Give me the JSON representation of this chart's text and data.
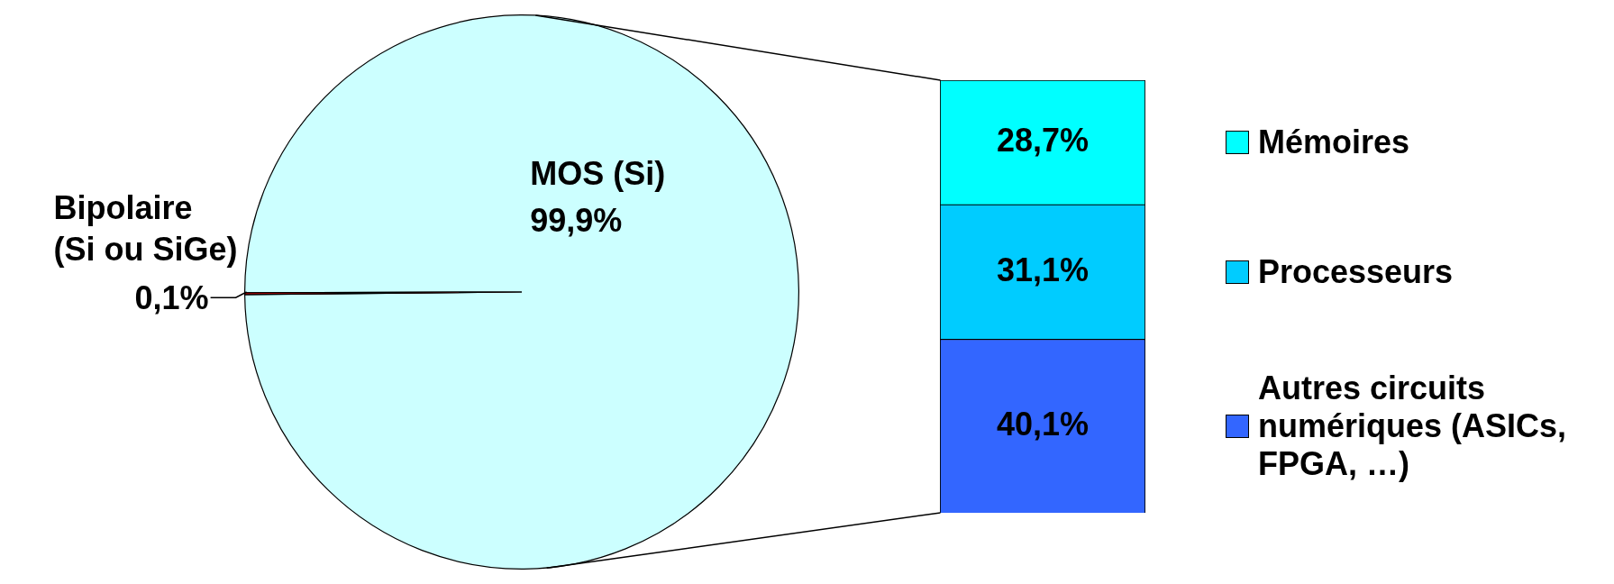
{
  "chart_data": [
    {
      "type": "pie",
      "categories": [
        "MOS (Si)",
        "Bipolaire (Si ou SiGe)"
      ],
      "values": [
        99.9,
        0.1
      ],
      "colors": [
        "#ccffff",
        "#ff0000"
      ],
      "value_labels": [
        "99,9%",
        "0,1%"
      ]
    },
    {
      "type": "bar",
      "stacked": true,
      "categories": [
        null
      ],
      "tick_labels": false,
      "legend": "right",
      "series": [
        {
          "name": "Autres circuits numériques (ASICs, FPGA, …)",
          "color": "#3366ff",
          "values": [
            40.1
          ],
          "value_labels": [
            "40,1%"
          ]
        },
        {
          "name": "Processeurs",
          "color": "#00ccff",
          "values": [
            31.1
          ],
          "value_labels": [
            "31,1%"
          ]
        },
        {
          "name": "Mémoires",
          "color": "#00ffff",
          "values": [
            28.7
          ],
          "value_labels": [
            "28,7%"
          ]
        }
      ]
    }
  ]
}
